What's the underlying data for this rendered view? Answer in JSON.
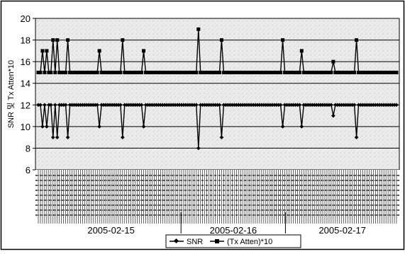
{
  "chart_data": {
    "type": "line",
    "title": "",
    "xlabel": "",
    "ylabel": "SNR 및 Tx Atten*10",
    "ylim": [
      6,
      20
    ],
    "yticks": [
      6,
      8,
      10,
      12,
      14,
      16,
      18,
      20
    ],
    "grid": true,
    "legend_position": "bottom-center",
    "date_labels": [
      "2005-02-15",
      "2005-02-16",
      "2005-02-17"
    ],
    "series": [
      {
        "name": "SNR",
        "marker": "diamond",
        "color": "#000000",
        "values": [
          12,
          12,
          10,
          12,
          10,
          12,
          12,
          9,
          12,
          9,
          12,
          12,
          12,
          12,
          9,
          12,
          12,
          12,
          12,
          12,
          12,
          12,
          12,
          12,
          12,
          12,
          12,
          12,
          12,
          10,
          12,
          12,
          12,
          12,
          12,
          12,
          12,
          12,
          12,
          12,
          9,
          12,
          12,
          12,
          12,
          12,
          12,
          12,
          12,
          12,
          10,
          12,
          12,
          12,
          12,
          12,
          12,
          12,
          12,
          12,
          12,
          12,
          12,
          12,
          12,
          12,
          12,
          12,
          12,
          12,
          12,
          12,
          12,
          12,
          12,
          12,
          8,
          12,
          12,
          12,
          12,
          12,
          12,
          12,
          12,
          12,
          12,
          9,
          12,
          12,
          12,
          12,
          12,
          12,
          12,
          12,
          12,
          12,
          12,
          12,
          12,
          12,
          12,
          12,
          12,
          12,
          12,
          12,
          12,
          12,
          12,
          12,
          12,
          12,
          12,
          12,
          10,
          12,
          12,
          12,
          12,
          12,
          12,
          12,
          12,
          10,
          12,
          12,
          12,
          12,
          12,
          12,
          12,
          12,
          12,
          12,
          12,
          12,
          12,
          12,
          11,
          12,
          12,
          12,
          12,
          12,
          12,
          12,
          12,
          12,
          12,
          9,
          12,
          12,
          12,
          12,
          12,
          12,
          12,
          12,
          12,
          12,
          12,
          12,
          12,
          12,
          12,
          12,
          12,
          12,
          12
        ]
      },
      {
        "name": "(Tx Atten)*10",
        "marker": "square",
        "color": "#000000",
        "values": [
          15,
          15,
          17,
          15,
          17,
          15,
          15,
          18,
          15,
          18,
          15,
          15,
          15,
          15,
          18,
          15,
          15,
          15,
          15,
          15,
          15,
          15,
          15,
          15,
          15,
          15,
          15,
          15,
          15,
          17,
          15,
          15,
          15,
          15,
          15,
          15,
          15,
          15,
          15,
          15,
          18,
          15,
          15,
          15,
          15,
          15,
          15,
          15,
          15,
          15,
          17,
          15,
          15,
          15,
          15,
          15,
          15,
          15,
          15,
          15,
          15,
          15,
          15,
          15,
          15,
          15,
          15,
          15,
          15,
          15,
          15,
          15,
          15,
          15,
          15,
          15,
          19,
          15,
          15,
          15,
          15,
          15,
          15,
          15,
          15,
          15,
          15,
          18,
          15,
          15,
          15,
          15,
          15,
          15,
          15,
          15,
          15,
          15,
          15,
          15,
          15,
          15,
          15,
          15,
          15,
          15,
          15,
          15,
          15,
          15,
          15,
          15,
          15,
          15,
          15,
          15,
          18,
          15,
          15,
          15,
          15,
          15,
          15,
          15,
          15,
          17,
          15,
          15,
          15,
          15,
          15,
          15,
          15,
          15,
          15,
          15,
          15,
          15,
          15,
          15,
          16,
          15,
          15,
          15,
          15,
          15,
          15,
          15,
          15,
          15,
          15,
          18,
          15,
          15,
          15,
          15,
          15,
          15,
          15,
          15,
          15,
          15,
          15,
          15,
          15,
          15,
          15,
          15,
          15,
          15,
          15
        ]
      }
    ]
  }
}
